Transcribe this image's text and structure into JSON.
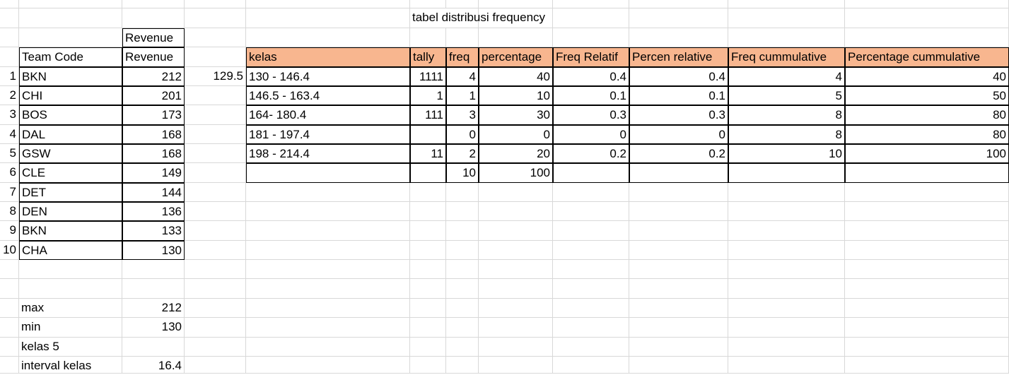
{
  "sheet": {
    "table_title": "tabel distribusi frequency",
    "team_table": {
      "header_top": "Revenue",
      "headers": [
        "Team Code",
        "Revenue"
      ],
      "rows": [
        {
          "n": "1",
          "code": "BKN",
          "revenue": "212"
        },
        {
          "n": "2",
          "code": "CHI",
          "revenue": "201"
        },
        {
          "n": "3",
          "code": "BOS",
          "revenue": "173"
        },
        {
          "n": "4",
          "code": "DAL",
          "revenue": "168"
        },
        {
          "n": "5",
          "code": "GSW",
          "revenue": "168"
        },
        {
          "n": "6",
          "code": "CLE",
          "revenue": "149"
        },
        {
          "n": "7",
          "code": "DET",
          "revenue": "144"
        },
        {
          "n": "8",
          "code": "DEN",
          "revenue": "136"
        },
        {
          "n": "9",
          "code": "BKN",
          "revenue": "133"
        },
        {
          "n": "10",
          "code": "CHA",
          "revenue": "130"
        }
      ]
    },
    "stats": [
      {
        "label": "max",
        "value": "212"
      },
      {
        "label": "min",
        "value": "130"
      },
      {
        "label": "kelas 5",
        "value": ""
      },
      {
        "label": "interval kelas",
        "value": "16.4"
      }
    ],
    "side_value": "129.5",
    "freq_table": {
      "headers": [
        "kelas",
        "tally",
        "freq",
        "percentage",
        "Freq Relatif",
        "Percen relative",
        "Freq cummulative",
        "Percentage cummulative"
      ],
      "rows": [
        [
          "130 - 146.4",
          "1111",
          "4",
          "40",
          "0.4",
          "0.4",
          "4",
          "40"
        ],
        [
          "146.5 - 163.4",
          "1",
          "1",
          "10",
          "0.1",
          "0.1",
          "5",
          "50"
        ],
        [
          "164- 180.4",
          "111",
          "3",
          "30",
          "0.3",
          "0.3",
          "8",
          "80"
        ],
        [
          "181 - 197.4",
          "",
          "0",
          "0",
          "0",
          "0",
          "8",
          "80"
        ],
        [
          "198 - 214.4",
          "11",
          "2",
          "20",
          "0.2",
          "0.2",
          "10",
          "100"
        ],
        [
          "",
          "",
          "10",
          "100",
          "",
          "",
          "",
          ""
        ]
      ]
    },
    "colors": {
      "header_fill": "#f8b68f",
      "gridline": "#d8d8d8",
      "border": "#000000"
    }
  }
}
